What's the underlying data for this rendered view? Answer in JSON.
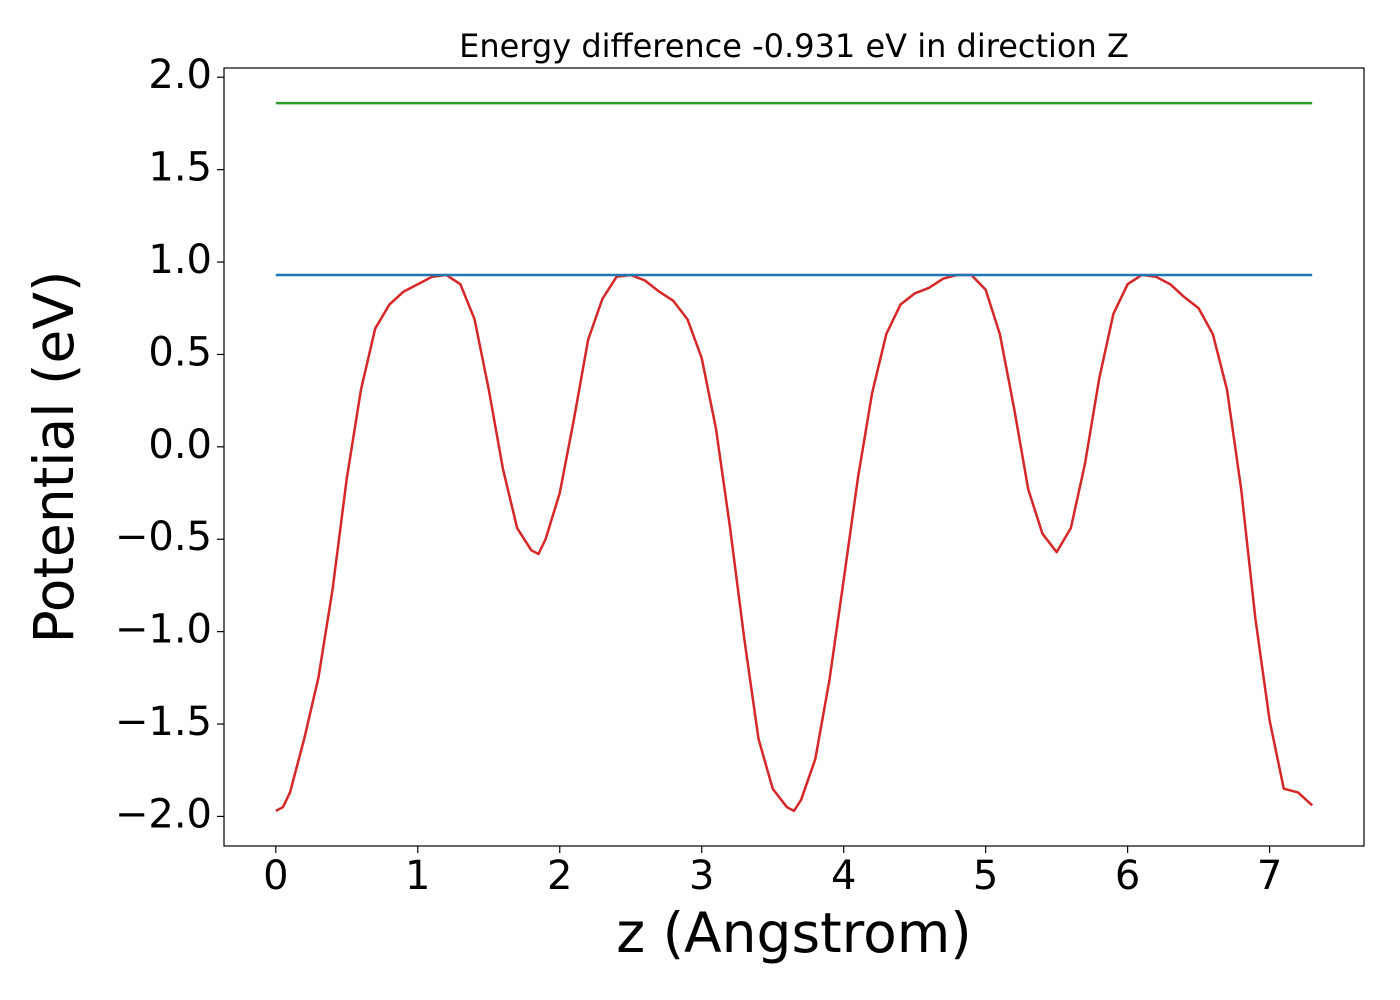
{
  "chart_data": {
    "type": "line",
    "title": "Energy difference -0.931 eV in direction Z",
    "xlabel": "z (Angstrom)",
    "ylabel": "Potential (eV)",
    "series": [
      {
        "color": "#d62728",
        "x": [
          0,
          0.05,
          0.1,
          0.2,
          0.3,
          0.4,
          0.5,
          0.6,
          0.7,
          0.8,
          0.9,
          1.0,
          1.1,
          1.2,
          1.3,
          1.4,
          1.5,
          1.6,
          1.7,
          1.8,
          1.85,
          1.9,
          2.0,
          2.1,
          2.2,
          2.3,
          2.4,
          2.5,
          2.6,
          2.7,
          2.8,
          2.9,
          3.0,
          3.1,
          3.2,
          3.3,
          3.4,
          3.5,
          3.6,
          3.65,
          3.7,
          3.8,
          3.9,
          4.0,
          4.1,
          4.2,
          4.3,
          4.4,
          4.5,
          4.6,
          4.7,
          4.8,
          4.9,
          5.0,
          5.1,
          5.2,
          5.3,
          5.4,
          5.5,
          5.6,
          5.7,
          5.8,
          5.9,
          6.0,
          6.1,
          6.2,
          6.3,
          6.4,
          6.5,
          6.6,
          6.7,
          6.8,
          6.9,
          7.0,
          7.1,
          7.2,
          7.3
        ],
        "values": [
          -1.97,
          -1.95,
          -1.87,
          -1.58,
          -1.25,
          -0.77,
          -0.17,
          0.31,
          0.64,
          0.77,
          0.84,
          0.88,
          0.92,
          0.93,
          0.88,
          0.69,
          0.31,
          -0.12,
          -0.44,
          -0.56,
          -0.58,
          -0.5,
          -0.25,
          0.15,
          0.58,
          0.8,
          0.92,
          0.93,
          0.9,
          0.84,
          0.79,
          0.69,
          0.48,
          0.1,
          -0.44,
          -1.04,
          -1.58,
          -1.85,
          -1.95,
          -1.97,
          -1.91,
          -1.69,
          -1.26,
          -0.72,
          -0.17,
          0.29,
          0.61,
          0.77,
          0.83,
          0.86,
          0.91,
          0.93,
          0.93,
          0.85,
          0.61,
          0.21,
          -0.23,
          -0.47,
          -0.57,
          -0.44,
          -0.09,
          0.37,
          0.72,
          0.88,
          0.93,
          0.92,
          0.88,
          0.81,
          0.75,
          0.61,
          0.31,
          -0.23,
          -0.93,
          -1.48,
          -1.85,
          -1.87,
          -1.94
        ]
      },
      {
        "color": "#1f77b4",
        "x": [
          0,
          7.3
        ],
        "values": [
          0.93,
          0.93
        ]
      },
      {
        "color": "#2ca02c",
        "x": [
          0,
          7.3
        ],
        "values": [
          1.86,
          1.86
        ]
      }
    ],
    "xlim": [
      -0.365,
      7.665
    ],
    "xticks": [
      0,
      1,
      2,
      3,
      4,
      5,
      6,
      7
    ],
    "ylim": [
      -2.16,
      2.05
    ],
    "yticks": [
      {
        "value": -2.0,
        "label": "−2.0"
      },
      {
        "value": -1.5,
        "label": "−1.5"
      },
      {
        "value": -1.0,
        "label": "−1.0"
      },
      {
        "value": -0.5,
        "label": "−0.5"
      },
      {
        "value": 0.0,
        "label": "0.0"
      },
      0.5,
      {
        "value": 1.0,
        "label": "1.0"
      },
      1.5,
      {
        "value": 2.0,
        "label": "2.0"
      }
    ],
    "grid": false
  }
}
